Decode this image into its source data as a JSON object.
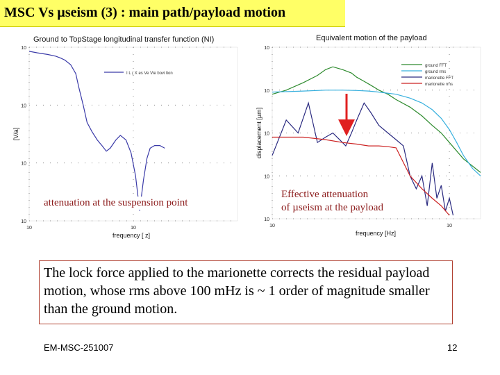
{
  "slide": {
    "title": "MSC Vs µseism (3) : main path/payload motion",
    "caption_left": "attenuation at the suspension point",
    "caption_right_line1": "Effective attenuation",
    "caption_right_line2": "of µseism at the payload",
    "conclusion": "The lock force applied to the marionette corrects the residual payload motion, whose rms above 100 mHz is ~ 1 order of magnitude smaller than the ground motion.",
    "footer_left": "EM-MSC-251007",
    "page_number": "12"
  },
  "chart_data": [
    {
      "type": "line",
      "title": "Ground to TopStage longitudinal transfer function (NI)",
      "xlabel": "frequency [ z]",
      "ylabel": "[V/a]",
      "x_scale": "log",
      "y_scale": "log",
      "xlim": [
        0.1,
        10
      ],
      "ylim": [
        0.001,
        1
      ],
      "xticks": [
        {
          "v": 0.1,
          "label": "10"
        },
        {
          "v": 1,
          "label": "10"
        }
      ],
      "yticks": [
        {
          "v": 1,
          "label": "10"
        },
        {
          "v": 0.1,
          "label": "10"
        },
        {
          "v": 0.01,
          "label": "10"
        },
        {
          "v": 0.001,
          "label": "10"
        }
      ],
      "legend": [
        "I L ( X es Ve Vie bovi tion"
      ],
      "series": [
        {
          "name": "I L ( X es Ve Vie bovi tion",
          "color": "#3a3aa8",
          "x": [
            0.1,
            0.12,
            0.15,
            0.18,
            0.2,
            0.22,
            0.25,
            0.28,
            0.3,
            0.33,
            0.36,
            0.4,
            0.45,
            0.5,
            0.55,
            0.6,
            0.68,
            0.75,
            0.85,
            0.95,
            1.05,
            1.15,
            1.25,
            1.35,
            1.45,
            1.6,
            1.8,
            2.0
          ],
          "values": [
            0.85,
            0.8,
            0.75,
            0.7,
            0.65,
            0.6,
            0.5,
            0.35,
            0.2,
            0.1,
            0.05,
            0.035,
            0.025,
            0.02,
            0.016,
            0.018,
            0.025,
            0.03,
            0.025,
            0.015,
            0.006,
            0.0015,
            0.005,
            0.012,
            0.018,
            0.02,
            0.02,
            0.018
          ]
        }
      ]
    },
    {
      "type": "line",
      "title": "Equivalent motion of the payload",
      "xlabel": "frequency [Hz]",
      "ylabel": "displacement [µm]",
      "x_scale": "log",
      "y_scale": "log",
      "xlim": [
        0.1,
        1.5
      ],
      "ylim": [
        0.001,
        10
      ],
      "xticks": [
        {
          "v": 0.1,
          "label": "10"
        },
        {
          "v": 1,
          "label": "10"
        }
      ],
      "yticks": [
        {
          "v": 10,
          "label": "10"
        },
        {
          "v": 1,
          "label": "10"
        },
        {
          "v": 0.1,
          "label": "10"
        },
        {
          "v": 0.01,
          "label": "10"
        },
        {
          "v": 0.001,
          "label": "10"
        }
      ],
      "legend": [
        "marionette FFT",
        "ground FFT",
        "marionette rms",
        "ground rms"
      ],
      "series": [
        {
          "name": "ground FFT",
          "color": "#2e8b2e",
          "x": [
            0.1,
            0.12,
            0.15,
            0.18,
            0.2,
            0.22,
            0.25,
            0.28,
            0.3,
            0.33,
            0.36,
            0.4,
            0.45,
            0.5,
            0.6,
            0.7,
            0.8,
            0.9,
            1.0,
            1.2,
            1.5
          ],
          "values": [
            0.8,
            1.0,
            1.5,
            2.2,
            3.0,
            3.5,
            3.0,
            2.5,
            2.0,
            1.6,
            1.3,
            1.0,
            0.8,
            0.6,
            0.4,
            0.25,
            0.15,
            0.1,
            0.06,
            0.025,
            0.012
          ]
        },
        {
          "name": "ground rms",
          "color": "#38b0de",
          "x": [
            0.1,
            0.15,
            0.2,
            0.25,
            0.3,
            0.35,
            0.4,
            0.5,
            0.6,
            0.7,
            0.8,
            0.9,
            1.0,
            1.1,
            1.2,
            1.35,
            1.5
          ],
          "values": [
            0.9,
            0.95,
            1.0,
            1.0,
            0.98,
            0.95,
            0.9,
            0.8,
            0.65,
            0.5,
            0.35,
            0.22,
            0.12,
            0.06,
            0.03,
            0.015,
            0.01
          ]
        },
        {
          "name": "marionette FFT",
          "color": "#2a2a80",
          "x": [
            0.1,
            0.12,
            0.14,
            0.16,
            0.18,
            0.2,
            0.22,
            0.24,
            0.26,
            0.28,
            0.3,
            0.33,
            0.36,
            0.4,
            0.45,
            0.5,
            0.55,
            0.6,
            0.65,
            0.7,
            0.75,
            0.8,
            0.85,
            0.9,
            0.95,
            1.0,
            1.05
          ],
          "values": [
            0.03,
            0.2,
            0.1,
            0.5,
            0.06,
            0.08,
            0.1,
            0.07,
            0.05,
            0.1,
            0.2,
            0.5,
            0.3,
            0.15,
            0.1,
            0.07,
            0.05,
            0.01,
            0.005,
            0.01,
            0.002,
            0.02,
            0.003,
            0.006,
            0.0015,
            0.003,
            0.0012
          ]
        },
        {
          "name": "marionette rms",
          "color": "#cc2222",
          "x": [
            0.1,
            0.15,
            0.2,
            0.25,
            0.3,
            0.35,
            0.4,
            0.45,
            0.5,
            0.6,
            0.7,
            0.8,
            0.9,
            1.0
          ],
          "values": [
            0.08,
            0.08,
            0.07,
            0.06,
            0.055,
            0.05,
            0.05,
            0.048,
            0.045,
            0.01,
            0.005,
            0.003,
            0.002,
            0.0012
          ]
        }
      ]
    }
  ]
}
